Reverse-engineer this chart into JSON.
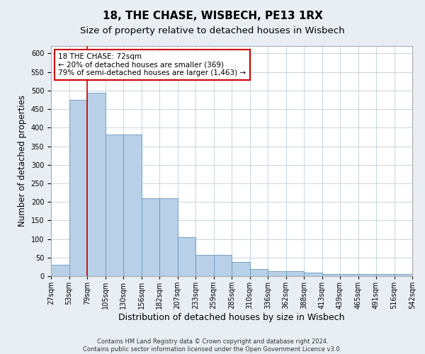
{
  "title": "18, THE CHASE, WISBECH, PE13 1RX",
  "subtitle": "Size of property relative to detached houses in Wisbech",
  "xlabel": "Distribution of detached houses by size in Wisbech",
  "ylabel": "Number of detached properties",
  "footer1": "Contains HM Land Registry data © Crown copyright and database right 2024.",
  "footer2": "Contains public sector information licensed under the Open Government Licence v3.0.",
  "bar_values": [
    30,
    475,
    495,
    382,
    382,
    210,
    210,
    105,
    57,
    57,
    38,
    20,
    13,
    13,
    10,
    5,
    5,
    5,
    5,
    5
  ],
  "bar_labels": [
    "27sqm",
    "53sqm",
    "79sqm",
    "105sqm",
    "130sqm",
    "156sqm",
    "182sqm",
    "207sqm",
    "233sqm",
    "259sqm",
    "285sqm",
    "310sqm",
    "336sqm",
    "362sqm",
    "388sqm",
    "413sqm",
    "439sqm",
    "465sqm",
    "491sqm",
    "516sqm",
    "542sqm"
  ],
  "bar_color": "#b8d0e8",
  "bar_edge_color": "#6699bb",
  "vline_color": "#cc0000",
  "annotation_text": "18 THE CHASE: 72sqm\n← 20% of detached houses are smaller (369)\n79% of semi-detached houses are larger (1,463) →",
  "annotation_box_color": "#cc0000",
  "ylim": [
    0,
    620
  ],
  "yticks": [
    0,
    50,
    100,
    150,
    200,
    250,
    300,
    350,
    400,
    450,
    500,
    550,
    600
  ],
  "bg_color": "#e8eef4",
  "plot_bg_color": "#ffffff",
  "grid_color": "#c8d4e0",
  "title_fontsize": 11,
  "subtitle_fontsize": 9.5,
  "ylabel_fontsize": 8.5,
  "xlabel_fontsize": 9,
  "tick_fontsize": 7,
  "footer_fontsize": 6,
  "annotation_fontsize": 7.5
}
